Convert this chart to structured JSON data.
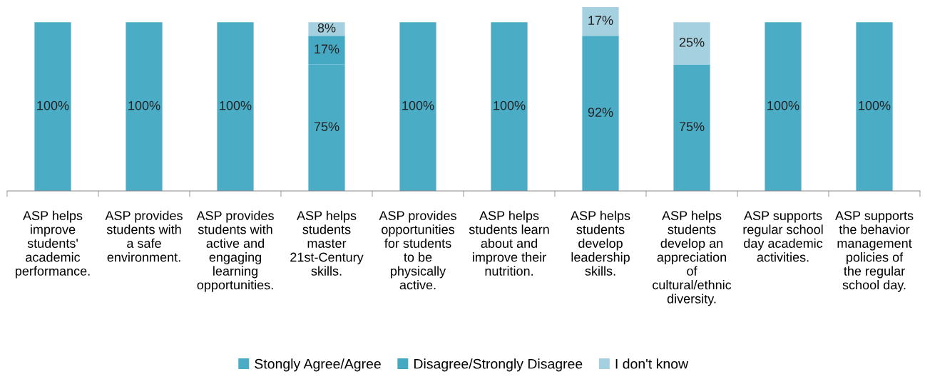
{
  "chart_data": {
    "type": "bar",
    "stacked": true,
    "legend": "bottom",
    "grid": false,
    "categories": [
      "ASP helps improve students' academic performance.",
      "ASP provides students with a safe environment.",
      "ASP provides students with active and engaging learning opportunities.",
      "ASP helps students master 21st-Century skills.",
      "ASP provides opportunities for students to be physically active.",
      "ASP helps students learn about and improve their nutrition.",
      "ASP helps students develop leadership skills.",
      "ASP helps students develop an appreciation of cultural/ethnic diversity.",
      "ASP supports regular school day academic activities.",
      "ASP supports the behavior management policies of the regular school day."
    ],
    "series": [
      {
        "name": "Stongly Agree/Agree",
        "color": "#4bacc6",
        "values": [
          100,
          100,
          100,
          75,
          100,
          100,
          92,
          75,
          100,
          100
        ],
        "value_labels": [
          "100%",
          "100%",
          "100%",
          "75%",
          "100%",
          "100%",
          "92%",
          "75%",
          "100%",
          "100%"
        ]
      },
      {
        "name": "Disagree/Strongly Disagree",
        "color": "#46a9c4",
        "values": [
          null,
          null,
          null,
          17,
          null,
          null,
          null,
          null,
          null,
          null
        ],
        "value_labels": [
          null,
          null,
          null,
          "17%",
          null,
          null,
          null,
          null,
          null,
          null
        ]
      },
      {
        "name": "I don't know",
        "color": "#a5d0df",
        "values": [
          null,
          null,
          null,
          8,
          null,
          null,
          17,
          25,
          null,
          null
        ],
        "value_labels": [
          null,
          null,
          null,
          "8%",
          null,
          null,
          "17%",
          "25%",
          null,
          null
        ]
      }
    ]
  }
}
